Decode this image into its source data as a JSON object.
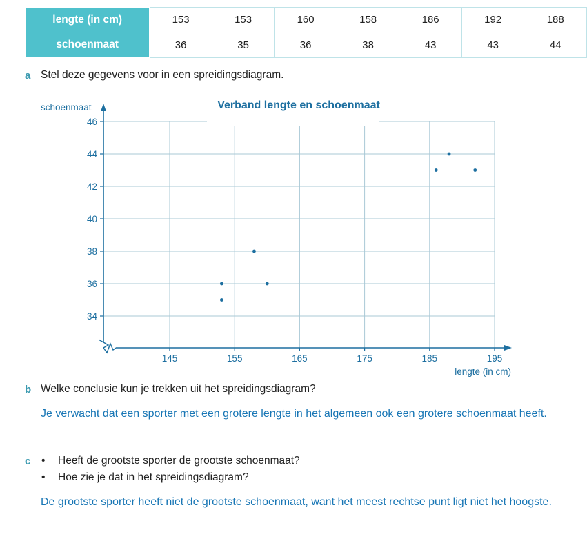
{
  "table": {
    "row1_header": "lengte (in cm)",
    "row1_values": [
      "153",
      "153",
      "160",
      "158",
      "186",
      "192",
      "188"
    ],
    "row2_header": "schoenmaat",
    "row2_values": [
      "36",
      "35",
      "36",
      "38",
      "43",
      "43",
      "44"
    ]
  },
  "questions": {
    "a": {
      "letter": "a",
      "text": "Stel deze gegevens voor in een spreidingsdiagram."
    },
    "b": {
      "letter": "b",
      "text": "Welke conclusie kun je trekken uit het spreidingsdiagram?",
      "answer": "Je verwacht dat een sporter met een grotere lengte in het algemeen ook een grotere schoenmaat heeft."
    },
    "c": {
      "letter": "c",
      "bullets": [
        "Heeft de grootste sporter de grootste schoenmaat?",
        "Hoe zie je dat in het spreidingsdiagram?"
      ],
      "answer": "De grootste sporter heeft niet de grootste schoenmaat, want het meest rechtse punt ligt niet het hoogste."
    }
  },
  "chart_data": {
    "type": "scatter",
    "title": "Verband lengte en schoenmaat",
    "xlabel": "lengte (in cm)",
    "ylabel": "schoenmaat",
    "x_ticks": [
      145,
      155,
      165,
      175,
      185,
      195
    ],
    "y_ticks": [
      34,
      36,
      38,
      40,
      42,
      44,
      46
    ],
    "xlim": [
      135,
      197
    ],
    "ylim": [
      32,
      46
    ],
    "grid": true,
    "axis_break": "both",
    "point_color": "#1d6fa0",
    "points": [
      {
        "x": 153,
        "y": 36
      },
      {
        "x": 153,
        "y": 35
      },
      {
        "x": 160,
        "y": 36
      },
      {
        "x": 158,
        "y": 38
      },
      {
        "x": 186,
        "y": 43
      },
      {
        "x": 192,
        "y": 43
      },
      {
        "x": 188,
        "y": 44
      }
    ]
  }
}
